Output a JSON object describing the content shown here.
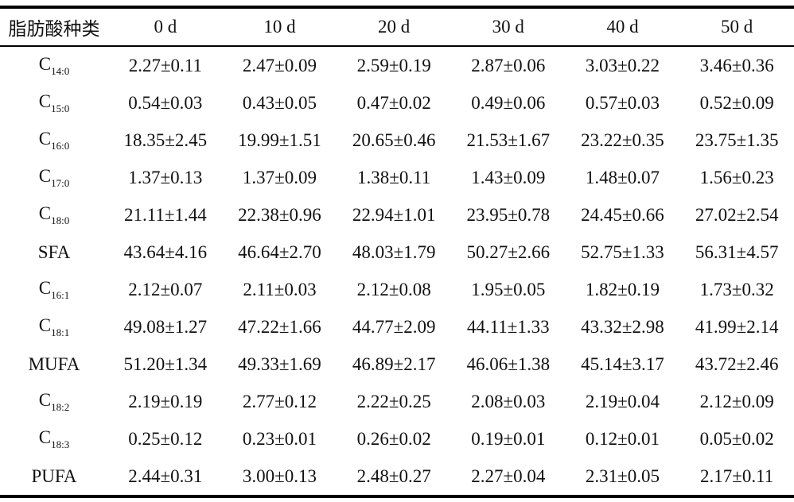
{
  "table": {
    "header": [
      "脂肪酸种类",
      "0 d",
      "10 d",
      "20 d",
      "30 d",
      "40 d",
      "50 d"
    ],
    "rows": [
      {
        "label": "C",
        "sub": "14:0",
        "cells": [
          "2.27±0.11",
          "2.47±0.09",
          "2.59±0.19",
          "2.87±0.06",
          "3.03±0.22",
          "3.46±0.36"
        ]
      },
      {
        "label": "C",
        "sub": "15:0",
        "cells": [
          "0.54±0.03",
          "0.43±0.05",
          "0.47±0.02",
          "0.49±0.06",
          "0.57±0.03",
          "0.52±0.09"
        ]
      },
      {
        "label": "C",
        "sub": "16:0",
        "cells": [
          "18.35±2.45",
          "19.99±1.51",
          "20.65±0.46",
          "21.53±1.67",
          "23.22±0.35",
          "23.75±1.35"
        ]
      },
      {
        "label": "C",
        "sub": "17:0",
        "cells": [
          "1.37±0.13",
          "1.37±0.09",
          "1.38±0.11",
          "1.43±0.09",
          "1.48±0.07",
          "1.56±0.23"
        ]
      },
      {
        "label": "C",
        "sub": "18:0",
        "cells": [
          "21.11±1.44",
          "22.38±0.96",
          "22.94±1.01",
          "23.95±0.78",
          "24.45±0.66",
          "27.02±2.54"
        ]
      },
      {
        "label": "SFA",
        "cells": [
          "43.64±4.16",
          "46.64±2.70",
          "48.03±1.79",
          "50.27±2.66",
          "52.75±1.33",
          "56.31±4.57"
        ]
      },
      {
        "label": "C",
        "sub": "16:1",
        "cells": [
          "2.12±0.07",
          "2.11±0.03",
          "2.12±0.08",
          "1.95±0.05",
          "1.82±0.19",
          "1.73±0.32"
        ]
      },
      {
        "label": "C",
        "sub": "18:1",
        "cells": [
          "49.08±1.27",
          "47.22±1.66",
          "44.77±2.09",
          "44.11±1.33",
          "43.32±2.98",
          "41.99±2.14"
        ]
      },
      {
        "label": "MUFA",
        "cells": [
          "51.20±1.34",
          "49.33±1.69",
          "46.89±2.17",
          "46.06±1.38",
          "45.14±3.17",
          "43.72±2.46"
        ]
      },
      {
        "label": "C",
        "sub": "18:2",
        "cells": [
          "2.19±0.19",
          "2.77±0.12",
          "2.22±0.25",
          "2.08±0.03",
          "2.19±0.04",
          "2.12±0.09"
        ]
      },
      {
        "label": "C",
        "sub": "18:3",
        "cells": [
          "0.25±0.12",
          "0.23±0.01",
          "0.26±0.02",
          "0.19±0.01",
          "0.12±0.01",
          "0.05±0.02"
        ]
      },
      {
        "label": "PUFA",
        "cells": [
          "2.44±0.31",
          "3.00±0.13",
          "2.48±0.27",
          "2.27±0.04",
          "2.31±0.05",
          "2.17±0.11"
        ]
      }
    ]
  }
}
